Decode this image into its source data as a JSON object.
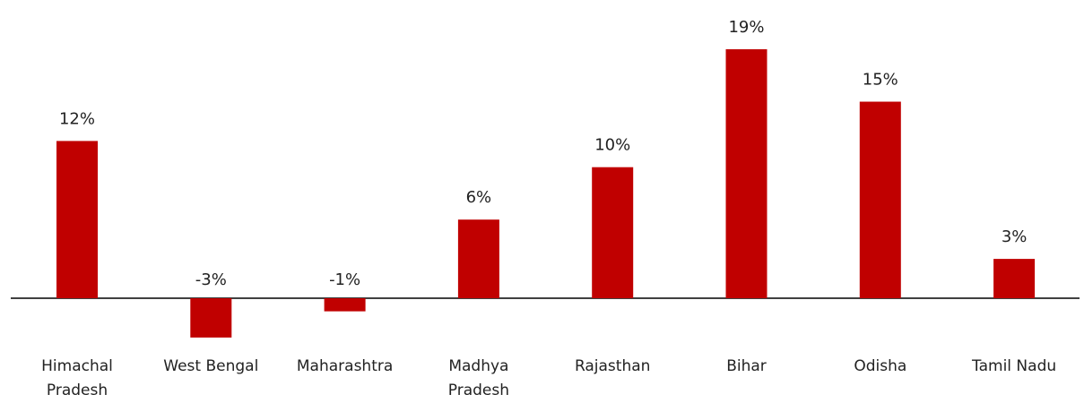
{
  "chart_data": {
    "type": "bar",
    "categories": [
      "Himachal\nPradesh",
      "West Bengal",
      "Maharashtra",
      "Madhya\nPradesh",
      "Rajasthan",
      "Bihar",
      "Odisha",
      "Tamil Nadu"
    ],
    "values": [
      12,
      -3,
      -1,
      6,
      10,
      19,
      15,
      3
    ],
    "value_labels": [
      "12%",
      "-3%",
      "-1%",
      "6%",
      "10%",
      "19%",
      "15%",
      "3%"
    ],
    "color": "#c00000"
  }
}
